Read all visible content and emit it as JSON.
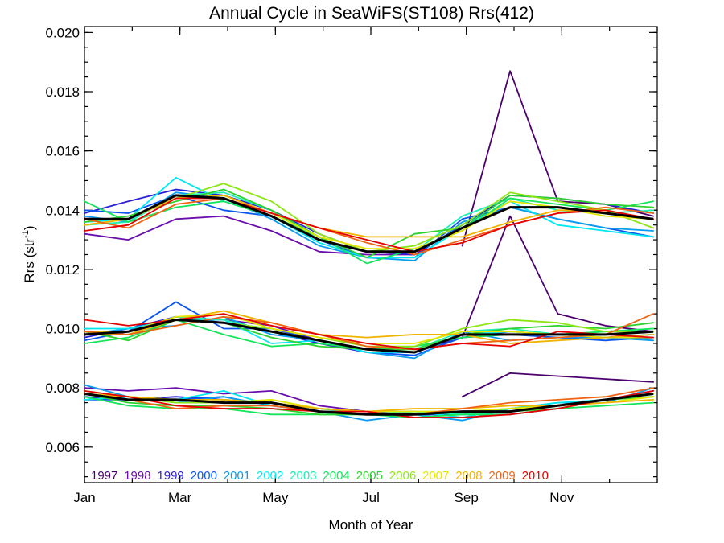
{
  "chart_data": {
    "type": "line",
    "title": "Annual Cycle in SeaWiFS(ST108) Rrs(412)",
    "xlabel": "Month of Year",
    "ylabel": "Rrs (str",
    "ylabel_sup": "-1",
    "ylabel_close": ")",
    "xlim": [
      1,
      13
    ],
    "ylim": [
      0.0048,
      0.0202
    ],
    "x_ticks": [
      {
        "value": 1,
        "label": "Jan"
      },
      {
        "value": 3,
        "label": "Mar"
      },
      {
        "value": 5,
        "label": "May"
      },
      {
        "value": 7,
        "label": "Jul"
      },
      {
        "value": 9,
        "label": "Sep"
      },
      {
        "value": 11,
        "label": "Nov"
      }
    ],
    "y_ticks": [
      {
        "value": 0.006,
        "label": "0.006"
      },
      {
        "value": 0.008,
        "label": "0.008"
      },
      {
        "value": 0.01,
        "label": "0.010"
      },
      {
        "value": 0.012,
        "label": "0.012"
      },
      {
        "value": 0.014,
        "label": "0.014"
      },
      {
        "value": 0.016,
        "label": "0.016"
      },
      {
        "value": 0.018,
        "label": "0.018"
      },
      {
        "value": 0.02,
        "label": "0.020"
      }
    ],
    "grid": false,
    "legend_position": "bottom",
    "x": [
      1.0,
      1.917,
      2.917,
      3.917,
      4.917,
      5.917,
      6.917,
      7.917,
      8.917,
      9.917,
      10.917,
      11.917,
      12.917
    ],
    "series": [
      {
        "name": "1997",
        "color": "#4b006e",
        "upper": [
          null,
          null,
          null,
          null,
          null,
          null,
          null,
          null,
          0.0128,
          0.0187,
          0.0143,
          0.0142,
          0.0138
        ],
        "middle": [
          null,
          null,
          null,
          null,
          null,
          null,
          null,
          null,
          0.0097,
          0.0138,
          0.0105,
          0.0101,
          0.0099
        ],
        "lower": [
          null,
          null,
          null,
          null,
          null,
          null,
          null,
          null,
          0.0077,
          0.0085,
          0.0084,
          0.0083,
          0.0082
        ]
      },
      {
        "name": "1998",
        "color": "#6a0dad",
        "upper": [
          0.0132,
          0.013,
          0.0137,
          0.0138,
          0.0133,
          0.0126,
          0.0125,
          0.0125,
          null,
          null,
          null,
          null,
          null
        ],
        "middle": [
          0.0098,
          0.0098,
          0.0103,
          0.0103,
          0.0101,
          0.0096,
          0.0092,
          0.0092,
          null,
          null,
          null,
          null,
          null
        ],
        "lower": [
          0.008,
          0.0079,
          0.008,
          0.0078,
          0.0079,
          0.0074,
          0.0072,
          0.0072,
          null,
          null,
          null,
          null,
          null
        ]
      },
      {
        "name": "1999",
        "color": "#2a1fd6",
        "upper": [
          0.0139,
          0.0143,
          0.0147,
          0.0145,
          0.014,
          0.0132,
          0.0126,
          0.0125,
          0.0135,
          0.0145,
          0.0144,
          0.0142,
          0.0139
        ],
        "middle": [
          0.0097,
          0.01,
          0.0104,
          0.0102,
          0.0099,
          0.0095,
          0.0092,
          0.0092,
          0.0097,
          0.0099,
          0.0098,
          0.0097,
          0.0098
        ],
        "lower": [
          0.0077,
          0.0076,
          0.0077,
          0.0076,
          0.0075,
          0.0073,
          0.0072,
          0.0071,
          0.0071,
          0.0071,
          0.0073,
          0.0076,
          0.0079
        ]
      },
      {
        "name": "2000",
        "color": "#0a55f0",
        "upper": [
          0.014,
          0.0139,
          0.0145,
          0.014,
          0.0138,
          0.013,
          0.0124,
          0.0124,
          0.0137,
          0.0141,
          0.0137,
          0.0134,
          0.0131
        ],
        "middle": [
          0.0096,
          0.0099,
          0.0109,
          0.01,
          0.01,
          0.0096,
          0.0092,
          0.0091,
          0.0097,
          0.0098,
          0.0097,
          0.0096,
          0.0097
        ],
        "lower": [
          0.0076,
          0.0076,
          0.0076,
          0.0077,
          0.0074,
          0.0072,
          0.0071,
          0.0071,
          0.0071,
          0.0072,
          0.0074,
          0.0076,
          0.0078
        ]
      },
      {
        "name": "2001",
        "color": "#0a9cf0",
        "upper": [
          0.0138,
          0.0136,
          0.0146,
          0.0144,
          0.0137,
          0.0128,
          0.0124,
          0.0123,
          0.0136,
          0.0141,
          0.0137,
          0.0134,
          0.0133
        ],
        "middle": [
          0.0098,
          0.01,
          0.0101,
          0.0104,
          0.0098,
          0.0096,
          0.0092,
          0.009,
          0.0099,
          0.0096,
          0.0097,
          0.0097,
          0.0096
        ],
        "lower": [
          0.0081,
          0.0077,
          0.0075,
          0.0077,
          0.0074,
          0.0072,
          0.0069,
          0.0071,
          0.0069,
          0.0073,
          0.0075,
          0.0075,
          0.008
        ]
      },
      {
        "name": "2002",
        "color": "#00e8f0",
        "upper": [
          0.0136,
          0.0137,
          0.0151,
          0.0143,
          0.0138,
          0.0129,
          0.0124,
          0.0124,
          0.0134,
          0.0143,
          0.0135,
          0.0133,
          0.0131
        ],
        "middle": [
          0.01,
          0.01,
          0.0103,
          0.0103,
          0.0095,
          0.0096,
          0.0092,
          0.0092,
          0.0098,
          0.0099,
          0.0098,
          0.0097,
          0.0098
        ],
        "lower": [
          0.0076,
          0.0077,
          0.0076,
          0.0079,
          0.0074,
          0.0072,
          0.0071,
          0.0072,
          0.007,
          0.0073,
          0.0075,
          0.0076,
          0.0077
        ]
      },
      {
        "name": "2003",
        "color": "#1ef0b4",
        "upper": [
          0.0135,
          0.0136,
          0.0145,
          0.0146,
          0.014,
          0.013,
          0.0126,
          0.0126,
          0.0138,
          0.0144,
          0.014,
          0.0139,
          0.014
        ],
        "middle": [
          0.0099,
          0.0099,
          0.0104,
          0.0103,
          0.0099,
          0.0096,
          0.0093,
          0.0093,
          0.0099,
          0.01,
          0.0098,
          0.0099,
          0.01
        ],
        "lower": [
          0.0078,
          0.0077,
          0.0076,
          0.0076,
          0.0075,
          0.0073,
          0.0071,
          0.0072,
          0.0071,
          0.0072,
          0.0074,
          0.0076,
          0.0077
        ]
      },
      {
        "name": "2004",
        "color": "#14e65a",
        "upper": [
          0.0143,
          0.0136,
          0.0141,
          0.0143,
          0.0138,
          0.0131,
          0.0122,
          0.0127,
          0.0133,
          0.0144,
          0.0142,
          0.014,
          0.0143
        ],
        "middle": [
          0.0095,
          0.0097,
          0.0103,
          0.0098,
          0.0094,
          0.0095,
          0.0093,
          0.0094,
          0.0097,
          0.0098,
          0.0098,
          0.0099,
          0.01
        ],
        "lower": [
          0.0077,
          0.0074,
          0.0073,
          0.0073,
          0.0071,
          0.0071,
          0.0071,
          0.007,
          0.0071,
          0.0071,
          0.0073,
          0.0074,
          0.0075
        ]
      },
      {
        "name": "2005",
        "color": "#2ed22e",
        "upper": [
          0.0136,
          0.0138,
          0.0143,
          0.0147,
          0.014,
          0.0131,
          0.0124,
          0.0132,
          0.0134,
          0.0145,
          0.0144,
          0.0142,
          0.0141
        ],
        "middle": [
          0.0099,
          0.0096,
          0.0103,
          0.0102,
          0.0097,
          0.0094,
          0.0093,
          0.0093,
          0.0098,
          0.01,
          0.0101,
          0.01,
          0.0102
        ],
        "lower": [
          0.0078,
          0.0075,
          0.0074,
          0.0074,
          0.0073,
          0.0071,
          0.0071,
          0.0071,
          0.0072,
          0.0072,
          0.0073,
          0.0076,
          0.0077
        ]
      },
      {
        "name": "2006",
        "color": "#8ce614",
        "upper": [
          0.0137,
          0.0137,
          0.0144,
          0.0149,
          0.0143,
          0.0132,
          0.0126,
          0.0128,
          0.0135,
          0.0146,
          0.0143,
          0.014,
          0.0134
        ],
        "middle": [
          0.0098,
          0.0098,
          0.0103,
          0.0102,
          0.01,
          0.0097,
          0.0094,
          0.0094,
          0.01,
          0.0103,
          0.0102,
          0.0099,
          0.0099
        ],
        "lower": [
          0.0079,
          0.0077,
          0.0075,
          0.0075,
          0.0076,
          0.0073,
          0.0072,
          0.0072,
          0.0072,
          0.0073,
          0.0074,
          0.0076,
          0.0078
        ]
      },
      {
        "name": "2007",
        "color": "#e6e600",
        "upper": [
          0.0135,
          0.0137,
          0.0144,
          0.0145,
          0.0139,
          0.0131,
          0.0127,
          0.0127,
          0.0133,
          0.0143,
          0.0141,
          0.0138,
          0.0137
        ],
        "middle": [
          0.0099,
          0.0099,
          0.0104,
          0.0105,
          0.01,
          0.0097,
          0.0095,
          0.0095,
          0.0099,
          0.0099,
          0.0098,
          0.0097,
          0.0097
        ],
        "lower": [
          0.0078,
          0.0077,
          0.0076,
          0.0075,
          0.0076,
          0.0073,
          0.0072,
          0.0072,
          0.0072,
          0.0073,
          0.0074,
          0.0075,
          0.0077
        ]
      },
      {
        "name": "2008",
        "color": "#f0b400",
        "upper": [
          0.0135,
          0.0137,
          0.0144,
          0.0145,
          0.0139,
          0.0134,
          0.0131,
          0.0131,
          0.0131,
          0.0136,
          0.014,
          0.014,
          0.0137
        ],
        "middle": [
          0.0098,
          0.0098,
          0.0103,
          0.0106,
          0.0102,
          0.0098,
          0.0097,
          0.0098,
          0.0098,
          0.0095,
          0.0096,
          0.0097,
          0.0098
        ],
        "lower": [
          0.0078,
          0.0077,
          0.0076,
          0.0076,
          0.0075,
          0.0073,
          0.0072,
          0.0073,
          0.0073,
          0.0074,
          0.0074,
          0.0075,
          0.0076
        ]
      },
      {
        "name": "2009",
        "color": "#f06414",
        "upper": [
          0.0137,
          0.0134,
          0.0142,
          0.0144,
          0.0139,
          0.0134,
          0.0129,
          0.0125,
          0.013,
          0.0135,
          0.0139,
          0.0141,
          0.0139
        ],
        "middle": [
          0.0099,
          0.0098,
          0.0101,
          0.0104,
          0.0102,
          0.0098,
          0.0094,
          0.0093,
          0.0095,
          0.0096,
          0.0097,
          0.0098,
          0.0105
        ],
        "lower": [
          0.0078,
          0.0076,
          0.0073,
          0.0074,
          0.0074,
          0.0072,
          0.0071,
          0.0071,
          0.0073,
          0.0075,
          0.0076,
          0.0077,
          0.008
        ]
      },
      {
        "name": "2010",
        "color": "#e60000",
        "upper": [
          0.0133,
          0.0135,
          0.0144,
          0.0144,
          0.0139,
          0.0134,
          0.013,
          0.0126,
          0.0129,
          0.0135,
          0.0139,
          0.014,
          0.0137
        ],
        "middle": [
          0.0103,
          0.0101,
          0.0103,
          0.0105,
          0.0101,
          0.0098,
          0.0095,
          0.0093,
          0.0095,
          0.0094,
          0.0099,
          0.0098,
          0.0097
        ],
        "lower": [
          0.0079,
          0.0077,
          0.0074,
          0.0073,
          0.0073,
          0.0072,
          0.0072,
          0.007,
          0.007,
          0.0071,
          0.0073,
          0.0076,
          0.0079
        ]
      }
    ],
    "mean_series": {
      "color": "#000000",
      "upper": [
        0.0137,
        0.0137,
        0.0145,
        0.0144,
        0.0138,
        0.013,
        0.0126,
        0.0126,
        0.0134,
        0.0141,
        0.0141,
        0.0139,
        0.0137
      ],
      "middle": [
        0.0098,
        0.0099,
        0.0103,
        0.0102,
        0.0099,
        0.0096,
        0.0093,
        0.0092,
        0.0098,
        0.0098,
        0.0098,
        0.0098,
        0.0099
      ],
      "lower": [
        0.0078,
        0.0076,
        0.0076,
        0.0075,
        0.0075,
        0.0072,
        0.0071,
        0.0071,
        0.0072,
        0.0072,
        0.0074,
        0.0076,
        0.0078
      ]
    }
  }
}
